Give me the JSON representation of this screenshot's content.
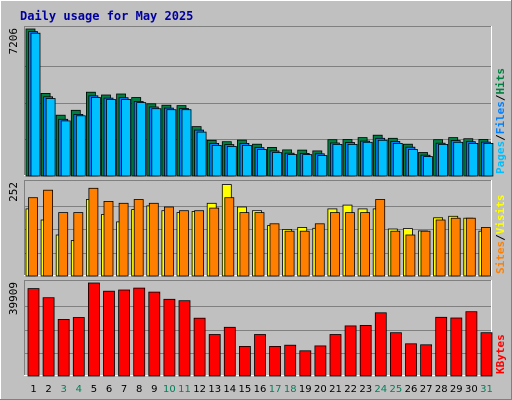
{
  "chart_data": {
    "type": "bar",
    "title": "Daily usage for May 2025",
    "categories": [
      "1",
      "2",
      "3",
      "4",
      "5",
      "6",
      "7",
      "8",
      "9",
      "10",
      "11",
      "12",
      "13",
      "14",
      "15",
      "16",
      "17",
      "18",
      "19",
      "20",
      "21",
      "22",
      "23",
      "24",
      "25",
      "26",
      "27",
      "28",
      "29",
      "30",
      "31"
    ],
    "weekend_days": [
      "3",
      "4",
      "10",
      "11",
      "17",
      "18",
      "24",
      "25",
      "31"
    ],
    "panels": [
      {
        "id": "hits-files-pages",
        "ymax_label": "7206",
        "ymax": 7206,
        "legend": [
          "Pages",
          "/",
          "Files",
          "/",
          "Hits"
        ],
        "legend_colors": [
          "#00c0ff",
          "#000000",
          "#0080ff",
          "#000000",
          "#008040"
        ],
        "series": [
          {
            "name": "Hits",
            "color": "#008040",
            "values": [
              7206,
              4050,
              2980,
              3220,
              4110,
              3970,
              4020,
              3850,
              3540,
              3470,
              3450,
              2420,
              1750,
              1680,
              1760,
              1560,
              1400,
              1280,
              1270,
              1230,
              1780,
              1790,
              1880,
              2000,
              1850,
              1560,
              1150,
              1780,
              1880,
              1830,
              1790
            ]
          },
          {
            "name": "Files",
            "color": "#0080ff",
            "values": [
              7080,
              3880,
              2780,
              3020,
              3930,
              3820,
              3840,
              3650,
              3380,
              3330,
              3310,
              2250,
              1600,
              1540,
              1600,
              1390,
              1230,
              1120,
              1110,
              1090,
              1620,
              1640,
              1710,
              1850,
              1690,
              1410,
              1020,
              1610,
              1740,
              1680,
              1660
            ]
          },
          {
            "name": "Pages",
            "color": "#00c0ff",
            "values": [
              7000,
              3800,
              2700,
              2950,
              3850,
              3750,
              3750,
              3600,
              3300,
              3250,
              3250,
              2150,
              1500,
              1450,
              1500,
              1300,
              1150,
              1050,
              1050,
              1000,
              1550,
              1550,
              1650,
              1750,
              1600,
              1300,
              950,
              1550,
              1650,
              1600,
              1600
            ]
          }
        ]
      },
      {
        "id": "visits-sites",
        "ymax_label": "252",
        "ymax": 252,
        "legend": [
          "Sites",
          "/",
          "Visits"
        ],
        "legend_colors": [
          "#ff8000",
          "#000000",
          "#ffff00"
        ],
        "series": [
          {
            "name": "Visits",
            "color": "#ffff00",
            "values": [
              180,
              150,
              110,
              95,
              205,
              165,
              145,
              178,
              188,
              175,
              170,
              173,
              195,
              245,
              185,
              175,
              135,
              125,
              130,
              128,
              180,
              190,
              180,
              180,
              126,
              127,
              121,
              156,
              160,
              155,
              120
            ]
          },
          {
            "name": "Sites",
            "color": "#ff8000",
            "values": [
              210,
              230,
              170,
              170,
              235,
              200,
              195,
              205,
              195,
              185,
              175,
              175,
              182,
              210,
              170,
              170,
              140,
              120,
              120,
              140,
              170,
              170,
              170,
              205,
              120,
              110,
              120,
              150,
              155,
              155,
              130
            ]
          }
        ]
      },
      {
        "id": "kbytes",
        "ymax_label": "39909",
        "ymax": 39909,
        "legend": [
          "KBytes"
        ],
        "legend_colors": [
          "#ff0000"
        ],
        "series": [
          {
            "name": "KBytes",
            "color": "#ff0000",
            "values": [
              37500,
              33600,
              24300,
              25100,
              39909,
              36400,
              36900,
              37700,
              36000,
              32900,
              32300,
              24800,
              17800,
              20900,
              12700,
              17800,
              12700,
              13200,
              10800,
              12900,
              17800,
              21500,
              21700,
              27100,
              18600,
              13800,
              13400,
              25200,
              24900,
              27600,
              18600
            ]
          }
        ]
      }
    ]
  }
}
